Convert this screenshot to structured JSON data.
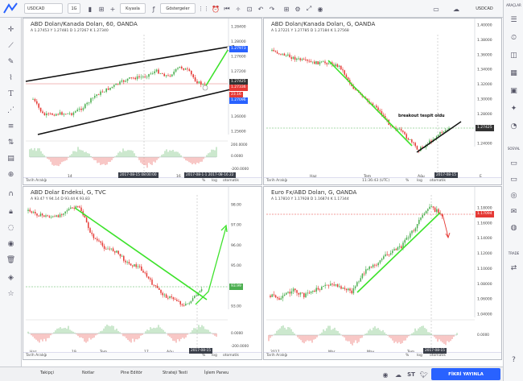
{
  "topbar": {
    "symbol": "USDCAD",
    "interval": "1G",
    "compare": "Kıyasla",
    "indicators": "Göstergeler",
    "right_symbol": "USDCAD"
  },
  "rightbar": {
    "title": "ARAÇLAR",
    "social": "SOSYAL",
    "trade": "TRADE"
  },
  "bottombar": {
    "tabs": [
      "Takipçi",
      "Notlar",
      "Pine Editör",
      "Strateji Testi",
      "İşlem Paneu"
    ],
    "publish": "FİKRİ YAYINLA"
  },
  "panes": [
    {
      "title": "ABD Doları/Kanada Doları, 60, OANDA",
      "ohlc": "A 1.27453  Y 1.27481  D 1.27267  K 1.27340",
      "y_labels": [
        "1.28400",
        "1.28000",
        "1.27600",
        "1.27200",
        "1.26800",
        "1.26400",
        "1.26000",
        "1.25600"
      ],
      "tags": [
        {
          "text": "1.27973",
          "color": "#2962ff"
        },
        {
          "text": "1.27425",
          "color": "#333"
        },
        {
          "text": "1.27336",
          "color": "#e53935"
        },
        {
          "text": "23.16",
          "color": "#e53935"
        },
        {
          "text": "1.27096",
          "color": "#2962ff"
        }
      ],
      "osc_labels": [
        "200.0000",
        "0.0000",
        "-200.0000"
      ],
      "x_labels": [
        "14",
        "16"
      ],
      "date_tags": [
        "2017-08-15 08:00:00",
        "2017-08-1·1 2017-08-16 22"
      ],
      "footer": {
        "left": "Tarih Aralığı",
        "time": "",
        "pct": "%",
        "log": "log",
        "auto": "otomatik"
      },
      "chart_data": {
        "type": "candlestick",
        "ylim": [
          1.254,
          1.285
        ],
        "oscillator_range": [
          -200,
          200
        ]
      }
    },
    {
      "title": "ABD Doları/Kanada Doları, G, OANDA",
      "ohlc": "A 1.27221  Y 1.27785  D 1.27184  K 1.27568",
      "y_labels": [
        "1.40000",
        "1.38000",
        "1.36000",
        "1.34000",
        "1.32000",
        "1.30000",
        "1.28000",
        "1.26000",
        "1.24000"
      ],
      "tags": [
        {
          "text": "1.27425",
          "color": "#333"
        }
      ],
      "annotation": "breakout tespit oldu",
      "x_labels": [
        "Haz",
        "Tem",
        "Ağu",
        "E"
      ],
      "date_tags": [
        "2017-08-15"
      ],
      "footer": {
        "left": "Tarih Aralığı",
        "time": "11:36:43 (UTC)",
        "pct": "%",
        "log": "log",
        "auto": "otomatik"
      },
      "chart_data": {
        "type": "candlestick",
        "ylim": [
          1.235,
          1.405
        ]
      }
    },
    {
      "title": "ABD Dolar Endeksi, G, TVC",
      "ohlc": "A 93.47  Y 94.14  D 93.44  K 93.83",
      "y_labels": [
        "98.00",
        "97.00",
        "96.00",
        "95.00",
        "94.00",
        "93.00"
      ],
      "tags": [
        {
          "text": "93.99",
          "color": "#4caf50"
        }
      ],
      "osc_labels": [
        "0.0000",
        "-200.0000"
      ],
      "x_labels": [
        "Haz",
        "19",
        "Tem",
        "17",
        "Ağu"
      ],
      "date_tags": [
        "2017-08-15"
      ],
      "footer": {
        "left": "Tarih Aralığı",
        "time": "",
        "pct": "%",
        "log": "log",
        "auto": "otomatik"
      },
      "chart_data": {
        "type": "candlestick",
        "ylim": [
          92.4,
          98.3
        ]
      }
    },
    {
      "title": "Euro Fx/ABD Doları, G, OANDA",
      "ohlc": "A 1.17810  Y 1.17928  D 1.16874  K 1.17344",
      "y_labels": [
        "1.18000",
        "1.16000",
        "1.14000",
        "1.12000",
        "1.10000",
        "1.08000",
        "1.06000",
        "1.04000"
      ],
      "tags": [
        {
          "text": "1.17094",
          "color": "#e53935"
        }
      ],
      "osc_labels": [
        "0.0000"
      ],
      "x_labels": [
        "2017",
        "Mar",
        "May",
        "Tem"
      ],
      "date_tags": [
        "2017-08-15"
      ],
      "footer": {
        "left": "Tarih Aralığı",
        "time": "",
        "pct": "%",
        "log": "log",
        "auto": "otomatik"
      },
      "chart_data": {
        "type": "candlestick",
        "ylim": [
          1.03,
          1.19
        ]
      }
    }
  ],
  "colors": {
    "up": "#4caf50",
    "down": "#e53935",
    "trend_green": "#3de22b",
    "trend_black": "#111111",
    "accent": "#2962ff"
  }
}
